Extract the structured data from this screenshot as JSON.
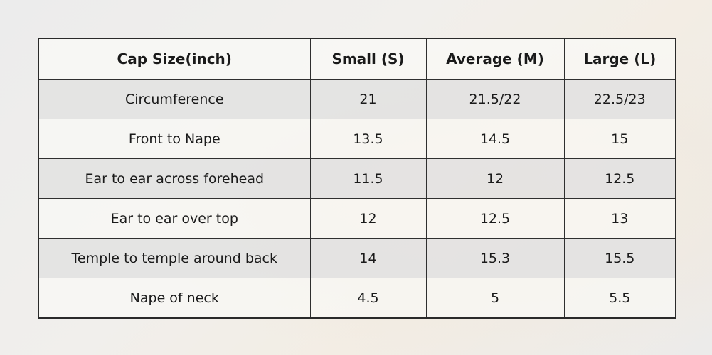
{
  "table": {
    "headers": [
      "Cap Size(inch)",
      "Small (S)",
      "Average (M)",
      "Large (L)"
    ],
    "rows": [
      [
        "Circumference",
        "21",
        "21.5/22",
        "22.5/23"
      ],
      [
        "Front to Nape",
        "13.5",
        "14.5",
        "15"
      ],
      [
        "Ear to ear across forehead",
        "11.5",
        "12",
        "12.5"
      ],
      [
        "Ear to ear over top",
        "12",
        "12.5",
        "13"
      ],
      [
        "Temple to temple around back",
        "14",
        "15.3",
        "15.5"
      ],
      [
        "Nape of neck",
        "4.5",
        "5",
        "5.5"
      ]
    ]
  }
}
